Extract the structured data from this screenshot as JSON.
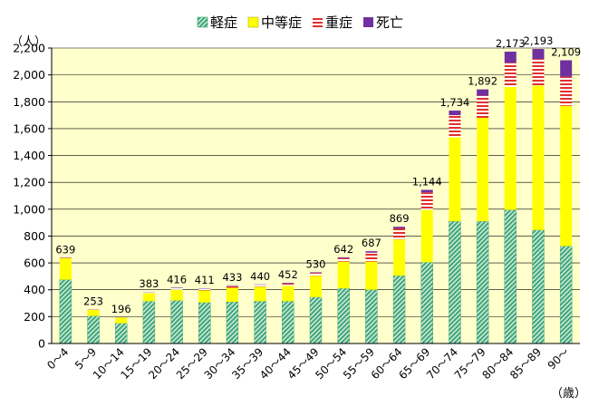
{
  "chart_data": {
    "type": "bar",
    "stacked": true,
    "title": "",
    "xlabel": "（歳）",
    "ylabel": "（人）",
    "ylim": [
      0,
      2200
    ],
    "yticks": [
      0,
      200,
      400,
      600,
      800,
      1000,
      1200,
      1400,
      1600,
      1800,
      2000,
      2200
    ],
    "ytick_labels": [
      "0",
      "200",
      "400",
      "600",
      "800",
      "1,000",
      "1,200",
      "1,400",
      "1,600",
      "1,800",
      "2,000",
      "2,200"
    ],
    "grid": true,
    "legend_position": "top",
    "categories": [
      "0～4",
      "5～9",
      "10～14",
      "15～19",
      "20～24",
      "25～29",
      "30～34",
      "35～39",
      "40～44",
      "45～49",
      "50～54",
      "55～59",
      "60～64",
      "65～69",
      "70～74",
      "75～79",
      "80～84",
      "85～89",
      "90～"
    ],
    "series": [
      {
        "name": "軽症",
        "color": "#2e9e6e",
        "pattern": "diagonal-hatch",
        "values": [
          475,
          205,
          150,
          315,
          320,
          305,
          310,
          315,
          315,
          345,
          410,
          400,
          505,
          605,
          910,
          910,
          995,
          845,
          725
        ]
      },
      {
        "name": "中等症",
        "color": "#ffff00",
        "pattern": "solid",
        "values": [
          160,
          45,
          44,
          60,
          80,
          90,
          105,
          108,
          115,
          160,
          200,
          210,
          270,
          390,
          625,
          770,
          915,
          1075,
          1045
        ]
      },
      {
        "name": "重症",
        "color": "#e0302e",
        "pattern": "horizontal-stripes",
        "values": [
          3,
          2,
          1,
          6,
          12,
          13,
          14,
          14,
          17,
          20,
          26,
          66,
          82,
          130,
          165,
          165,
          180,
          198,
          217
        ]
      },
      {
        "name": "死亡",
        "color": "#7030a0",
        "pattern": "solid",
        "values": [
          1,
          1,
          1,
          2,
          4,
          3,
          4,
          3,
          5,
          5,
          6,
          11,
          12,
          19,
          34,
          47,
          83,
          75,
          122
        ]
      }
    ],
    "totals": [
      639,
      253,
      196,
      383,
      416,
      411,
      433,
      440,
      452,
      530,
      642,
      687,
      869,
      1144,
      1734,
      1892,
      2173,
      2193,
      2109
    ],
    "total_labels": [
      "639",
      "253",
      "196",
      "383",
      "416",
      "411",
      "433",
      "440",
      "452",
      "530",
      "642",
      "687",
      "869",
      "1,144",
      "1,734",
      "1,892",
      "2,173",
      "2,193",
      "2,109"
    ],
    "colors": {
      "plot_background": "#ffffcc",
      "gridline": "#000000",
      "axis": "#000000"
    }
  }
}
